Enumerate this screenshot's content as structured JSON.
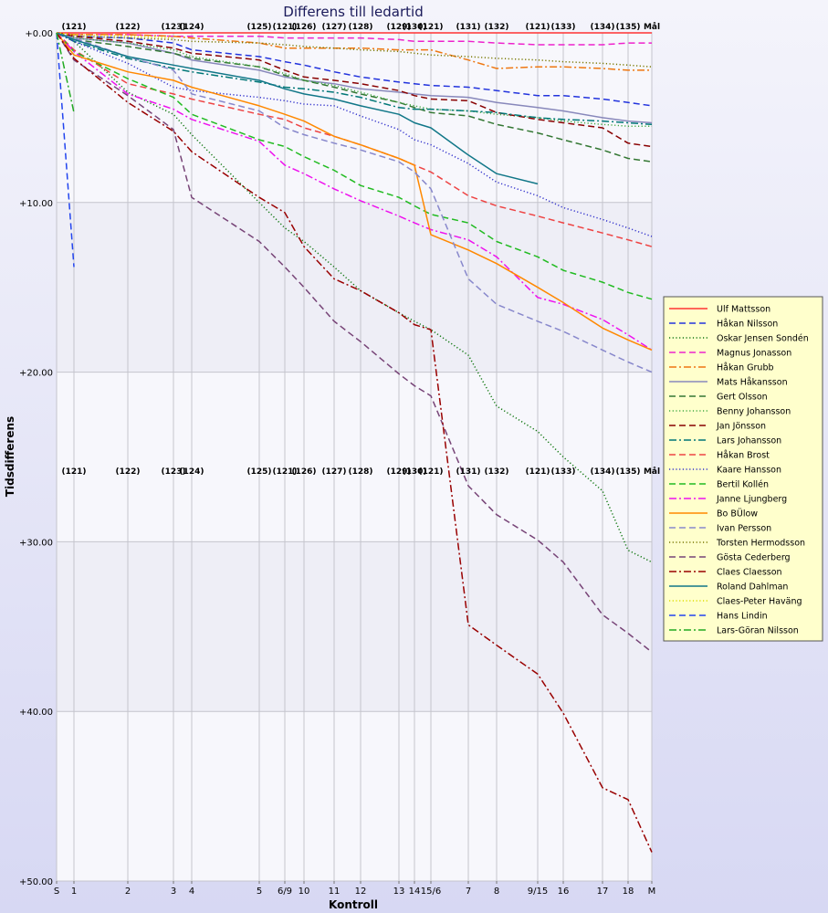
{
  "chart_data": {
    "type": "line",
    "title": "Differens till ledartid",
    "xlabel": "Kontroll",
    "ylabel": "Tidsdifferens",
    "ylim": [
      0,
      50
    ],
    "y_ticks": [
      "+0.00",
      "+10.00",
      "+20.00",
      "+30.00",
      "+40.00",
      "+50.00"
    ],
    "y_inverted": true,
    "grid": true,
    "legend_position": "right",
    "x_tick_labels": [
      "S",
      "1",
      "2",
      "3",
      "4",
      "5",
      "6/9",
      "10",
      "11",
      "12",
      "13",
      "14",
      "15/6",
      "7",
      "8",
      "9/15",
      "16",
      "17",
      "18",
      "M"
    ],
    "control_codes": [
      "(121)",
      "(122)",
      "(123)",
      "(124)",
      "(125)",
      "(121)",
      "(126)",
      "(127)",
      "(128)",
      "(129)",
      "(130)",
      "(121)",
      "(131)",
      "(132)",
      "(121)",
      "(133)",
      "(134)",
      "(135)",
      "Mål"
    ],
    "series": [
      {
        "name": "Ulf Mattsson",
        "color": "#ff3333",
        "dash": "solid",
        "values": [
          0,
          0,
          0,
          0,
          0,
          0,
          0,
          0,
          0,
          0,
          0,
          0,
          0,
          0,
          0,
          0,
          0,
          0,
          0,
          0
        ]
      },
      {
        "name": "Håkan Nilsson",
        "color": "#2233dd",
        "dash": "dash",
        "values": [
          0,
          0.2,
          0.3,
          0.6,
          1.0,
          1.4,
          1.7,
          1.9,
          2.3,
          2.6,
          2.9,
          3.0,
          3.1,
          3.2,
          3.4,
          3.7,
          3.7,
          3.9,
          4.1,
          4.3
        ]
      },
      {
        "name": "Oskar Jensen Sondén",
        "color": "#117711",
        "dash": "dot",
        "values": [
          0,
          0.5,
          3.5,
          4.8,
          6.0,
          10.0,
          11.5,
          12.3,
          13.8,
          15.2,
          16.5,
          17.0,
          17.5,
          19.0,
          22.0,
          23.5,
          25.0,
          27.0,
          30.5,
          31.2
        ]
      },
      {
        "name": "Magnus Jonasson",
        "color": "#ee22cc",
        "dash": "dash",
        "values": [
          0,
          0.1,
          0.1,
          0.2,
          0.2,
          0.2,
          0.3,
          0.3,
          0.3,
          0.3,
          0.4,
          0.5,
          0.5,
          0.5,
          0.6,
          0.7,
          0.7,
          0.7,
          0.6,
          0.6
        ]
      },
      {
        "name": "Håkan Grubb",
        "color": "#ee7711",
        "dash": "dashdot",
        "values": [
          0,
          0.1,
          0.1,
          0.2,
          0.3,
          0.6,
          0.9,
          0.9,
          0.9,
          0.9,
          1.0,
          1.0,
          1.0,
          1.6,
          2.1,
          2.0,
          2.0,
          2.1,
          2.2,
          2.2
        ]
      },
      {
        "name": "Mats Håkansson",
        "color": "#8888bb",
        "dash": "solid",
        "values": [
          0,
          0.3,
          0.6,
          1.2,
          1.6,
          2.2,
          2.6,
          2.8,
          3.0,
          3.3,
          3.5,
          3.6,
          3.7,
          3.8,
          4.1,
          4.4,
          4.6,
          5.0,
          5.2,
          5.3
        ]
      },
      {
        "name": "Gert Olsson",
        "color": "#337733",
        "dash": "dash",
        "values": [
          0,
          0.4,
          0.8,
          1.2,
          1.5,
          2.0,
          2.5,
          2.8,
          3.2,
          3.6,
          4.1,
          4.4,
          4.7,
          4.9,
          5.4,
          5.9,
          6.3,
          6.9,
          7.4,
          7.6
        ]
      },
      {
        "name": "Benny Johansson",
        "color": "#44aa44",
        "dash": "dot",
        "values": [
          0,
          0.3,
          0.6,
          1.0,
          1.4,
          2.0,
          2.4,
          2.8,
          3.1,
          3.5,
          4.1,
          4.3,
          4.5,
          4.6,
          4.8,
          5.0,
          5.2,
          5.4,
          5.5,
          5.5
        ]
      },
      {
        "name": "Jan Jönsson",
        "color": "#880000",
        "dash": "dash",
        "values": [
          0,
          0.2,
          0.5,
          0.9,
          1.2,
          1.6,
          2.2,
          2.6,
          2.8,
          3.0,
          3.4,
          3.7,
          3.9,
          4.0,
          4.7,
          5.1,
          5.3,
          5.6,
          6.5,
          6.7
        ]
      },
      {
        "name": "Lars Johansson",
        "color": "#007777",
        "dash": "dashdot",
        "values": [
          0,
          0.5,
          1.5,
          2.1,
          2.3,
          2.9,
          3.2,
          3.3,
          3.5,
          3.8,
          4.4,
          4.5,
          4.5,
          4.6,
          4.7,
          5.0,
          5.1,
          5.2,
          5.3,
          5.4
        ]
      },
      {
        "name": "Håkan Brost",
        "color": "#ee4444",
        "dash": "dash",
        "values": [
          0,
          1.0,
          3.0,
          3.6,
          3.9,
          4.8,
          5.1,
          5.6,
          6.1,
          6.6,
          7.4,
          7.8,
          8.2,
          9.6,
          10.2,
          10.8,
          11.2,
          11.8,
          12.2,
          12.6
        ]
      },
      {
        "name": "Kaare Hansson",
        "color": "#3333cc",
        "dash": "dot",
        "values": [
          0,
          0.5,
          1.8,
          3.2,
          3.4,
          3.8,
          4.0,
          4.2,
          4.3,
          4.9,
          5.7,
          6.3,
          6.6,
          7.7,
          8.8,
          9.6,
          10.3,
          11.0,
          11.5,
          12.0
        ]
      },
      {
        "name": "Bertil Kollén",
        "color": "#22bb22",
        "dash": "dash",
        "values": [
          0,
          1.1,
          2.7,
          3.8,
          4.8,
          6.3,
          6.7,
          7.3,
          8.1,
          9.0,
          9.7,
          10.2,
          10.7,
          11.2,
          12.3,
          13.2,
          14.0,
          14.7,
          15.3,
          15.7
        ]
      },
      {
        "name": "Janne Ljungberg",
        "color": "#ee11ee",
        "dash": "dashdot",
        "values": [
          0,
          1.1,
          3.6,
          4.5,
          5.1,
          6.4,
          7.8,
          8.3,
          9.2,
          9.9,
          10.8,
          11.2,
          11.6,
          12.2,
          13.2,
          15.6,
          16.0,
          16.9,
          17.8,
          18.7
        ]
      },
      {
        "name": "Bo BÜlow",
        "color": "#ff8800",
        "dash": "solid",
        "values": [
          0,
          1.3,
          2.3,
          2.8,
          3.2,
          4.3,
          4.8,
          5.2,
          6.1,
          6.6,
          7.4,
          7.8,
          11.9,
          12.8,
          13.6,
          15.0,
          15.9,
          17.4,
          18.1,
          18.7
        ]
      },
      {
        "name": "Ivan Persson",
        "color": "#8888cc",
        "dash": "dash",
        "values": [
          0,
          0.3,
          1.4,
          2.2,
          3.6,
          4.6,
          5.6,
          6.0,
          6.5,
          6.9,
          7.6,
          8.2,
          9.2,
          14.5,
          16.0,
          17.0,
          17.6,
          18.7,
          19.4,
          20.0
        ]
      },
      {
        "name": "Torsten Hermodsson",
        "color": "#777700",
        "dash": "dot",
        "values": [
          0,
          0.2,
          0.3,
          0.4,
          0.5,
          0.6,
          0.7,
          0.8,
          0.9,
          1.0,
          1.1,
          1.2,
          1.3,
          1.4,
          1.5,
          1.6,
          1.7,
          1.8,
          1.9,
          2.0
        ]
      },
      {
        "name": "Gösta Cederberg",
        "color": "#774477",
        "dash": "dash",
        "values": [
          0,
          1.6,
          3.7,
          5.7,
          9.7,
          12.3,
          13.8,
          15.0,
          17.0,
          18.2,
          20.1,
          20.8,
          21.4,
          26.7,
          28.4,
          29.9,
          31.2,
          34.3,
          35.4,
          36.5
        ]
      },
      {
        "name": "Claes Claesson",
        "color": "#990000",
        "dash": "dashdot",
        "values": [
          0,
          1.5,
          4.1,
          5.8,
          7.0,
          9.7,
          10.6,
          12.6,
          14.5,
          15.2,
          16.5,
          17.2,
          17.5,
          34.9,
          36.1,
          37.8,
          40.1,
          44.5,
          45.2,
          48.3
        ]
      },
      {
        "name": "Roland Dahlman",
        "color": "#117788",
        "dash": "solid",
        "values": [
          0,
          0.4,
          1.4,
          1.9,
          2.1,
          2.8,
          3.3,
          3.6,
          3.9,
          4.3,
          4.8,
          5.3,
          5.6,
          7.2,
          8.3,
          8.9
        ]
      },
      {
        "name": "Claes-Peter Haväng",
        "color": "#dddd00",
        "dash": "dot",
        "values": [
          0,
          0.1,
          0.2,
          0.3
        ]
      },
      {
        "name": "Hans Lindin",
        "color": "#2244ee",
        "dash": "dash",
        "values": [
          0,
          13.8
        ]
      },
      {
        "name": "Lars-Göran Nilsson",
        "color": "#22aa22",
        "dash": "dashdot",
        "values": [
          0,
          4.7
        ]
      }
    ]
  }
}
